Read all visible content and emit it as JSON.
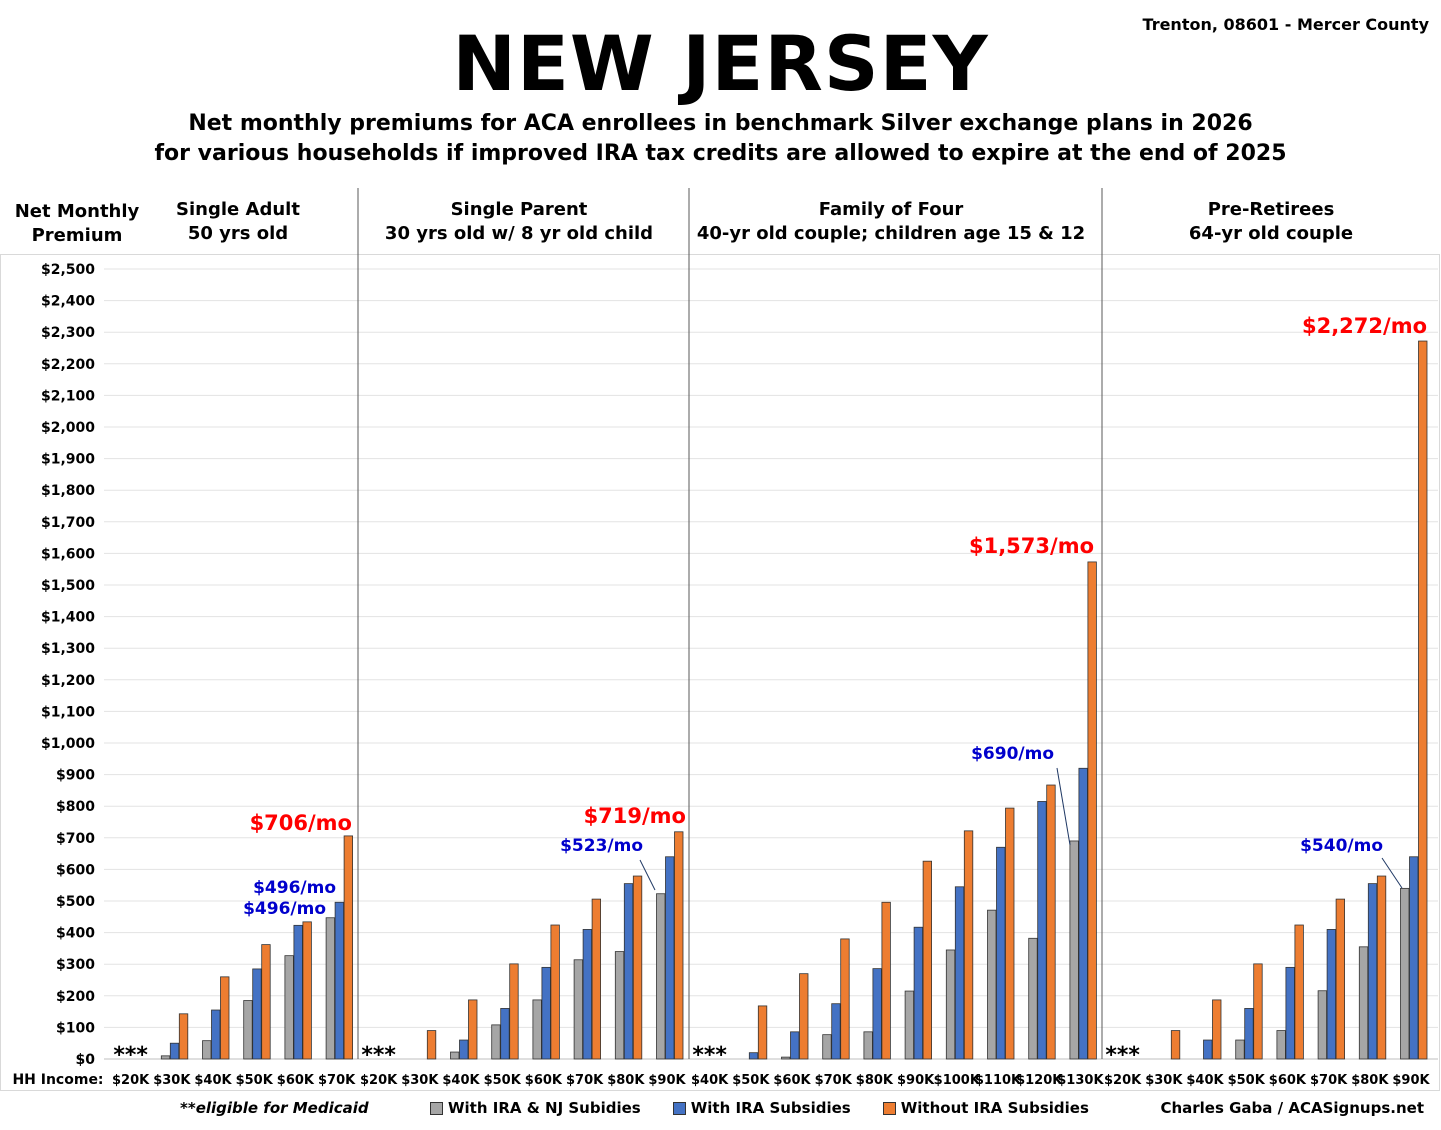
{
  "header": {
    "title": "NEW JERSEY",
    "location": "Trenton, 08601 - Mercer County",
    "subtitle_line1": "Net monthly premiums for ACA enrollees in benchmark Silver exchange plans in 2026",
    "subtitle_line2": "for various households if improved IRA tax credits are allowed to expire at the end of 2025"
  },
  "footer": {
    "footnote": "**eligible for Medicaid",
    "credit": "Charles Gaba / ACASignups.net"
  },
  "chart_data": {
    "type": "bar",
    "ylabel_line1": "Net Monthly",
    "ylabel_line2": "Premium",
    "xaxis_label": "HH Income:",
    "ylim": [
      0,
      2500
    ],
    "ytick_step": 100,
    "ytick_labels": [
      "$0",
      "$100",
      "$200",
      "$300",
      "$400",
      "$500",
      "$600",
      "$700",
      "$800",
      "$900",
      "$1,000",
      "$1,100",
      "$1,200",
      "$1,300",
      "$1,400",
      "$1,500",
      "$1,600",
      "$1,700",
      "$1,800",
      "$1,900",
      "$2,000",
      "$2,100",
      "$2,200",
      "$2,300",
      "$2,400",
      "$2,500"
    ],
    "grid": true,
    "legend_position": "bottom",
    "medicaid_marker": "***",
    "series_names": [
      "With IRA & NJ Subidies",
      "With IRA Subsidies",
      "Without IRA Subsidies"
    ],
    "series_colors": [
      "#a6a6a6",
      "#4472c4",
      "#ed7d31"
    ],
    "panels": [
      {
        "title_line1": "Single Adult",
        "title_line2": "50 yrs old",
        "categories": [
          "$20K",
          "$30K",
          "$40K",
          "$50K",
          "$60K",
          "$70K"
        ],
        "series": [
          {
            "name": "With IRA & NJ Subidies",
            "values": [
              null,
              10,
              58,
              185,
              327,
              447
            ]
          },
          {
            "name": "With IRA Subsidies",
            "values": [
              null,
              50,
              155,
              285,
              423,
              496
            ]
          },
          {
            "name": "Without IRA Subsidies",
            "values": [
              null,
              143,
              260,
              362,
              434,
              706
            ]
          }
        ],
        "annotations": [
          {
            "text": "$706/mo",
            "color": "#ff0000"
          },
          {
            "text": "$496/mo",
            "color": "#0000cc"
          },
          {
            "text": "$496/mo",
            "color": "#0000cc"
          }
        ]
      },
      {
        "title_line1": "Single Parent",
        "title_line2": "30 yrs old w/ 8 yr old child",
        "categories": [
          "$20K",
          "$30K",
          "$40K",
          "$50K",
          "$60K",
          "$70K",
          "$80K",
          "$90K"
        ],
        "series": [
          {
            "name": "With IRA & NJ Subidies",
            "values": [
              null,
              0,
              22,
              108,
              187,
              314,
              340,
              523
            ]
          },
          {
            "name": "With IRA Subsidies",
            "values": [
              null,
              0,
              60,
              160,
              290,
              410,
              555,
              640
            ]
          },
          {
            "name": "Without IRA Subsidies",
            "values": [
              null,
              90,
              187,
              301,
              424,
              506,
              579,
              719
            ]
          }
        ],
        "annotations": [
          {
            "text": "$719/mo",
            "color": "#ff0000"
          },
          {
            "text": "$523/mo",
            "color": "#0000cc"
          }
        ]
      },
      {
        "title_line1": "Family of Four",
        "title_line2": "40-yr old couple; children age 15 & 12",
        "categories": [
          "$40K",
          "$50K",
          "$60K",
          "$70K",
          "$80K",
          "$90K",
          "$100K",
          "$110K",
          "$120K",
          "$130K"
        ],
        "series": [
          {
            "name": "With IRA & NJ Subidies",
            "values": [
              null,
              0,
              6,
              77,
              86,
              215,
              345,
              471,
              382,
              690
            ]
          },
          {
            "name": "With IRA Subsidies",
            "values": [
              null,
              20,
              86,
              175,
              286,
              417,
              545,
              670,
              815,
              920
            ]
          },
          {
            "name": "Without IRA Subsidies",
            "values": [
              null,
              168,
              270,
              380,
              496,
              626,
              722,
              794,
              867,
              1573
            ]
          }
        ],
        "annotations": [
          {
            "text": "$1,573/mo",
            "color": "#ff0000"
          },
          {
            "text": "$690/mo",
            "color": "#0000cc"
          }
        ]
      },
      {
        "title_line1": "Pre-Retirees",
        "title_line2": "64-yr old couple",
        "categories": [
          "$20K",
          "$30K",
          "$40K",
          "$50K",
          "$60K",
          "$70K",
          "$80K",
          "$90K"
        ],
        "series": [
          {
            "name": "With IRA & NJ Subidies",
            "values": [
              null,
              0,
              0,
              60,
              90,
              216,
              355,
              540
            ]
          },
          {
            "name": "With IRA Subsidies",
            "values": [
              null,
              0,
              60,
              160,
              290,
              410,
              555,
              640
            ]
          },
          {
            "name": "Without IRA Subsidies",
            "values": [
              null,
              90,
              187,
              301,
              424,
              506,
              579,
              2272
            ]
          }
        ],
        "annotations": [
          {
            "text": "$2,272/mo",
            "color": "#ff0000"
          },
          {
            "text": "$540/mo",
            "color": "#0000cc"
          }
        ]
      }
    ]
  }
}
